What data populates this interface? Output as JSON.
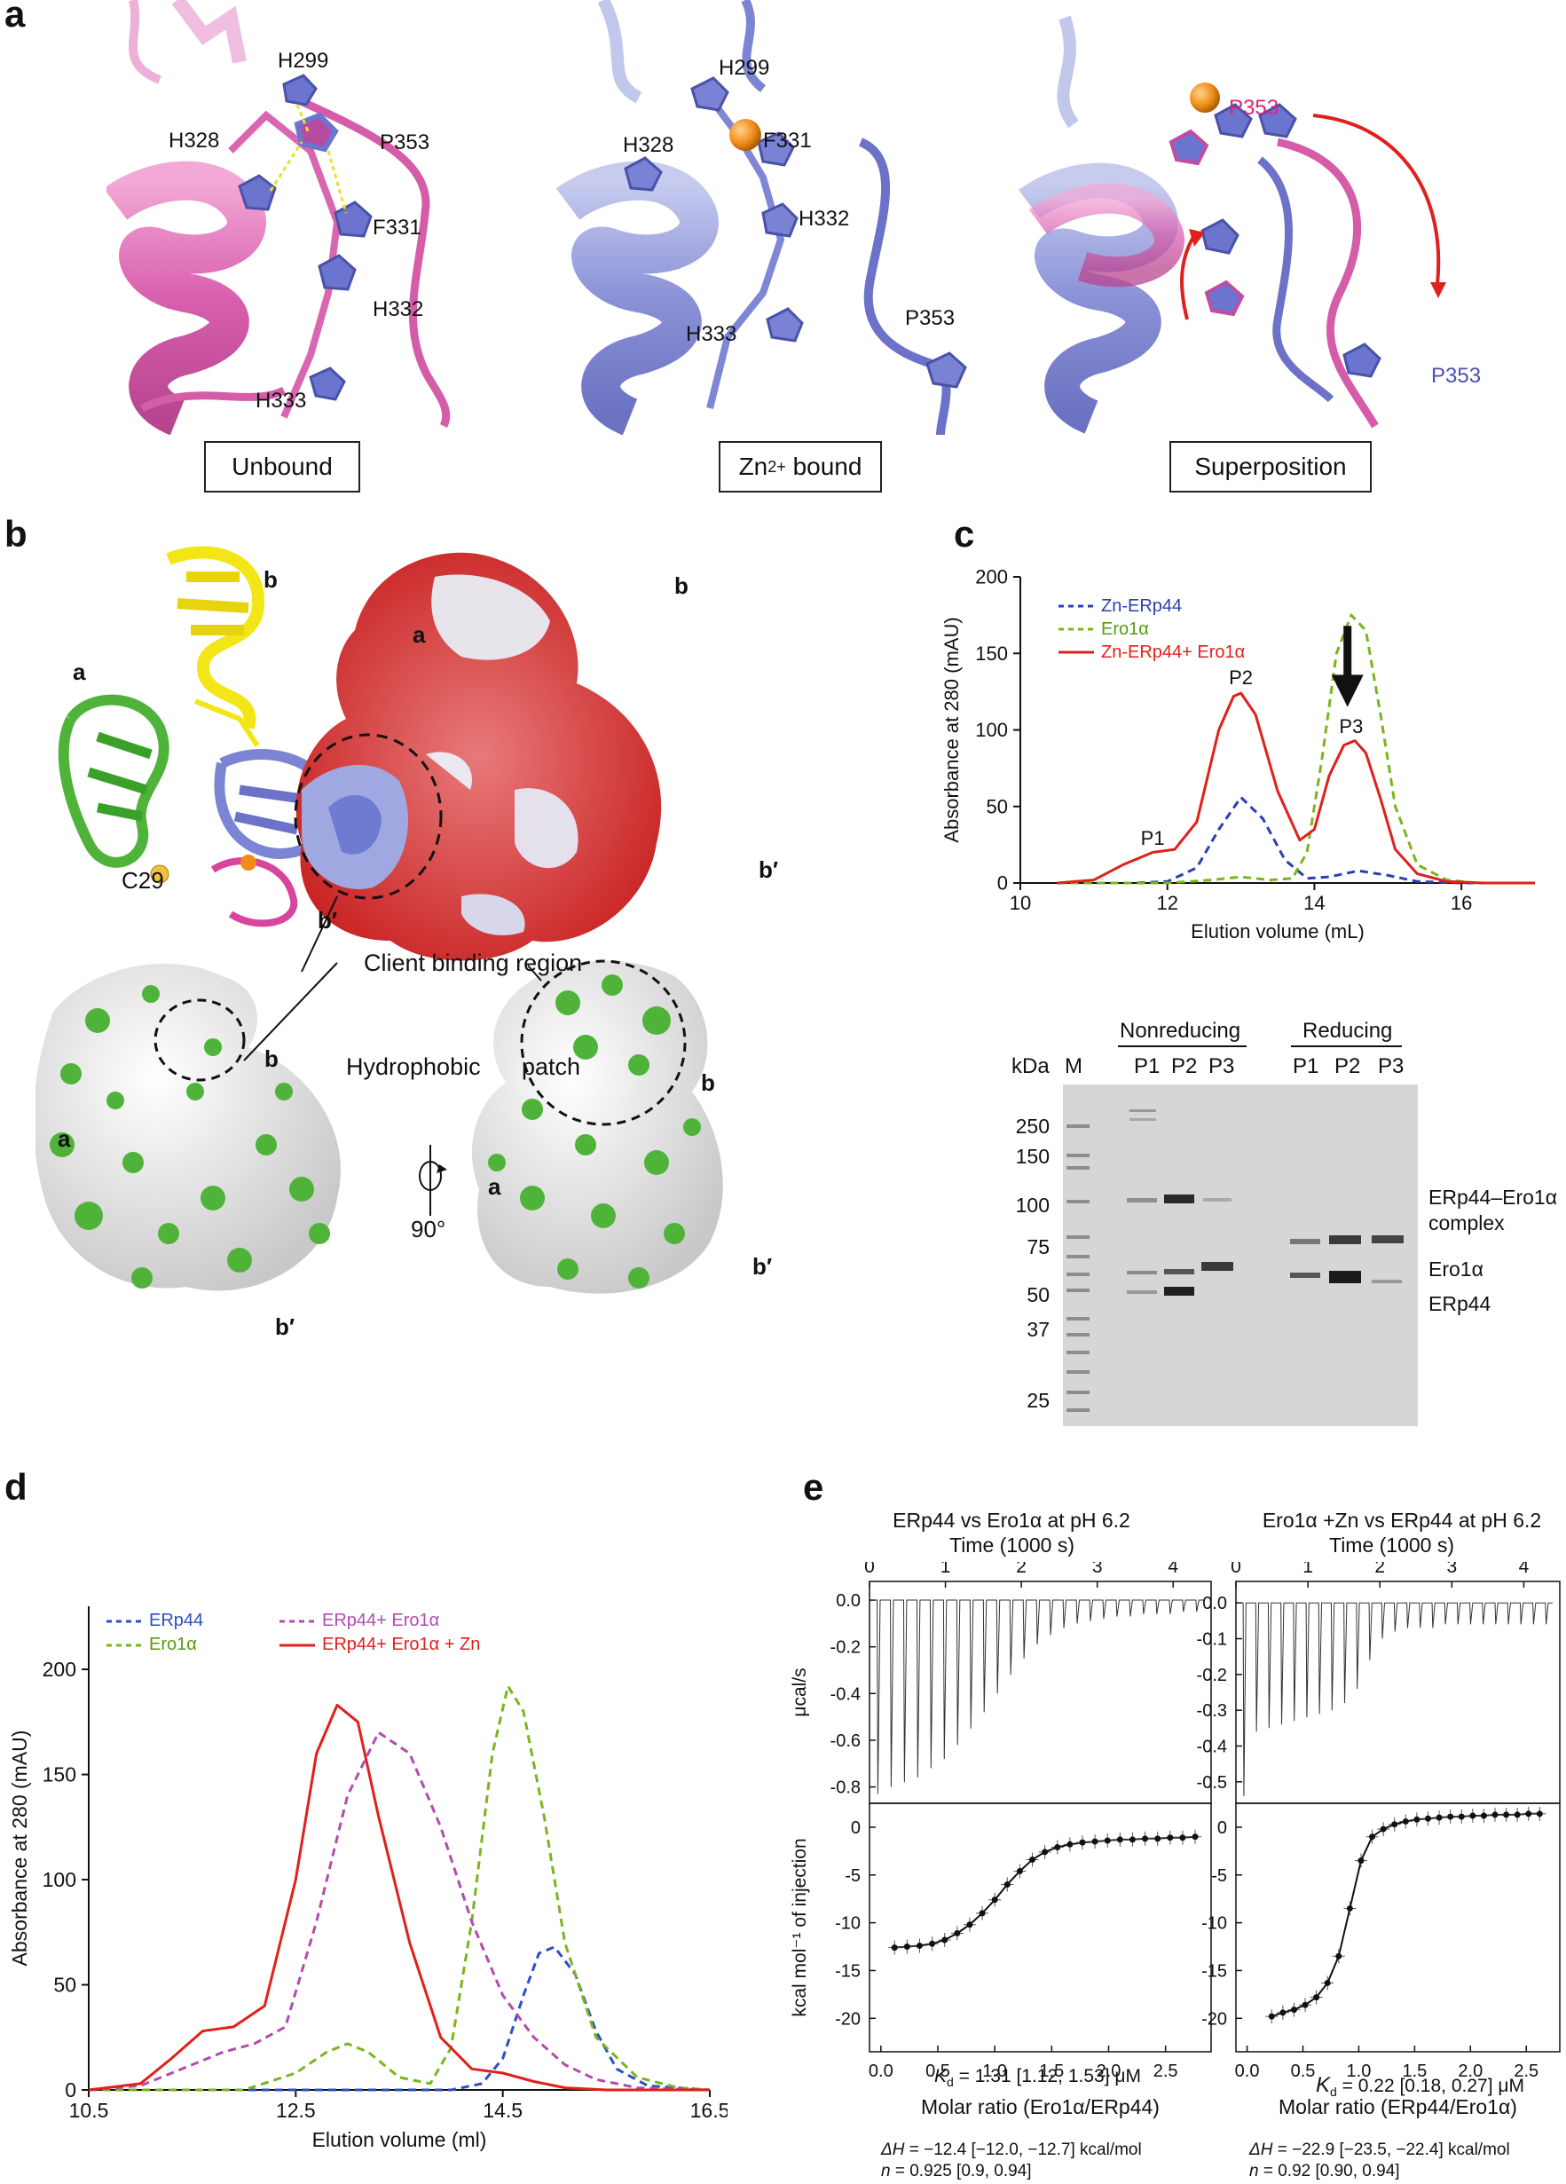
{
  "panel_labels": {
    "a": "a",
    "b": "b",
    "c": "c",
    "d": "d",
    "e": "e"
  },
  "panel_a": {
    "boxes": [
      "Unbound",
      "bound",
      "Superposition"
    ],
    "zn_box_prefix": "Zn",
    "zn_box_sup": "2+",
    "unbound_residues": [
      "H299",
      "P353",
      "H328",
      "F331",
      "H332",
      "H333"
    ],
    "zn_residues": [
      "H299",
      "H328",
      "F331",
      "H332",
      "H333",
      "P353"
    ],
    "super_residues": [
      "P353",
      "P353"
    ]
  },
  "panel_b": {
    "domain_labels": [
      "b",
      "a",
      "b′",
      "C29",
      "a",
      "b",
      "b′",
      "b",
      "a",
      "b′",
      "a",
      "b",
      "b′"
    ],
    "client_region": "Client binding region",
    "hydrophobic": "Hydrophobic",
    "patch": "patch",
    "rotation": "90°"
  },
  "panel_c": {
    "legend": [
      "Zn-ERp44",
      "Ero1α",
      "Zn-ERp44+ Ero1α"
    ],
    "peak_labels": [
      "P1",
      "P2",
      "P3"
    ],
    "gel": {
      "kda": "kDa",
      "m": "M",
      "nonreducing": "Nonreducing",
      "reducing": "Reducing",
      "lanes": [
        "P1",
        "P2",
        "P3",
        "P1",
        "P2",
        "P3"
      ],
      "markers": [
        "250",
        "150",
        "100",
        "75",
        "50",
        "37",
        "25"
      ],
      "band_labels": [
        "ERp44–Ero1α",
        "complex",
        "Ero1α",
        "ERp44"
      ]
    }
  },
  "panel_e": {
    "left_title": "ERp44 vs Ero1α at pH 6.2",
    "right_title": "Ero1α +Zn vs ERp44  at pH 6.2",
    "time_label": "Time (1000 s)",
    "top_ylabel": "μcal/s",
    "bottom_ylabel": "kcal mol⁻¹ of injection",
    "left_xlabel": "Molar ratio (Ero1α/ERp44)",
    "right_xlabel": "Molar ratio (ERp44/Ero1α)",
    "left_kd": "= 1.31 [1.12, 1.53] μM",
    "right_kd": "= 0.22 [0.18, 0.27] μM",
    "kd_sym": "K",
    "kd_sub": "d",
    "left_dh": "= −12.4 [−12.0, −12.7] kcal/mol",
    "right_dh": "= −22.9 [−23.5, −22.4] kcal/mol",
    "left_n": " = 0.925 [0.9, 0.94]",
    "right_n": " = 0.92 [0.90, 0.94]",
    "dh_sym": "ΔH",
    "n_sym": "n"
  },
  "chart_data": [
    {
      "id": "c",
      "type": "line",
      "xlabel": "Elution volume (mL)",
      "ylabel": "Absorbance at 280 (mAU)",
      "xlim": [
        10,
        17
      ],
      "ylim": [
        0,
        200
      ],
      "xticks": [
        10,
        12,
        14,
        16
      ],
      "yticks": [
        0,
        50,
        100,
        150,
        200
      ],
      "legend_position": "top-left",
      "series": [
        {
          "name": "Zn-ERp44",
          "color": "#2b3fb0",
          "dash": true,
          "x": [
            10.5,
            11.5,
            12.0,
            12.4,
            12.7,
            13.0,
            13.3,
            13.6,
            13.9,
            14.2,
            14.6,
            15.0,
            15.4,
            16.0,
            17.0
          ],
          "y": [
            0,
            0,
            1,
            10,
            35,
            56,
            42,
            15,
            3,
            4,
            8,
            5,
            1,
            0,
            0
          ]
        },
        {
          "name": "Ero1α",
          "color": "#7ab51d",
          "dash": true,
          "x": [
            10.5,
            12.0,
            12.6,
            13.0,
            13.4,
            13.7,
            13.9,
            14.1,
            14.3,
            14.5,
            14.7,
            14.9,
            15.1,
            15.4,
            15.8,
            16.2,
            17.0
          ],
          "y": [
            0,
            0,
            2,
            4,
            2,
            3,
            20,
            80,
            150,
            175,
            165,
            110,
            50,
            12,
            2,
            0,
            0
          ]
        },
        {
          "name": "Zn-ERp44+ Ero1α",
          "color": "#e0201b",
          "dash": false,
          "x": [
            10.5,
            11.0,
            11.4,
            11.8,
            12.1,
            12.4,
            12.7,
            12.9,
            13.0,
            13.2,
            13.5,
            13.8,
            14.0,
            14.2,
            14.4,
            14.55,
            14.7,
            14.9,
            15.1,
            15.4,
            15.8,
            16.3,
            17.0
          ],
          "y": [
            0,
            2,
            12,
            20,
            22,
            40,
            100,
            122,
            124,
            110,
            60,
            28,
            35,
            70,
            90,
            93,
            85,
            55,
            22,
            6,
            1,
            0,
            0
          ]
        }
      ],
      "annotations": [
        {
          "text": "P1",
          "x": 11.8,
          "y": 25
        },
        {
          "text": "P2",
          "x": 13.0,
          "y": 130
        },
        {
          "text": "P3",
          "x": 14.5,
          "y": 98
        }
      ]
    },
    {
      "id": "d",
      "type": "line",
      "xlabel": "Elution volume (ml)",
      "ylabel": "Absorbance at 280 (mAU)",
      "xlim": [
        10.5,
        16.5
      ],
      "ylim": [
        0,
        230
      ],
      "xticks": [
        10.5,
        12.5,
        14.5,
        16.5
      ],
      "yticks": [
        0,
        50,
        100,
        150,
        200
      ],
      "legend_position": "top-left",
      "series": [
        {
          "name": "ERp44",
          "color": "#2b4fc0",
          "dash": true,
          "x": [
            10.5,
            14.0,
            14.3,
            14.5,
            14.7,
            14.85,
            15.0,
            15.2,
            15.4,
            15.6,
            15.9,
            16.5
          ],
          "y": [
            0,
            0,
            3,
            15,
            45,
            65,
            68,
            55,
            28,
            10,
            2,
            0
          ]
        },
        {
          "name": "Ero1α",
          "color": "#7ab51d",
          "dash": true,
          "x": [
            10.5,
            12.0,
            12.5,
            12.8,
            13.0,
            13.2,
            13.5,
            13.8,
            14.0,
            14.2,
            14.4,
            14.55,
            14.7,
            14.9,
            15.1,
            15.4,
            15.8,
            16.2,
            16.5
          ],
          "y": [
            0,
            0,
            8,
            18,
            22,
            18,
            6,
            3,
            20,
            80,
            160,
            192,
            180,
            130,
            70,
            25,
            6,
            1,
            0
          ]
        },
        {
          "name": "ERp44+ Ero1α",
          "color": "#b34bb0",
          "dash": true,
          "x": [
            10.5,
            11.0,
            11.4,
            11.8,
            12.1,
            12.4,
            12.7,
            13.0,
            13.3,
            13.6,
            13.9,
            14.2,
            14.5,
            14.8,
            15.1,
            15.4,
            15.8,
            16.5
          ],
          "y": [
            0,
            2,
            10,
            18,
            22,
            30,
            80,
            140,
            170,
            160,
            125,
            80,
            45,
            25,
            12,
            5,
            1,
            0
          ]
        },
        {
          "name": "ERp44+ Ero1α + Zn",
          "color": "#e0201b",
          "dash": false,
          "x": [
            10.5,
            11.0,
            11.3,
            11.6,
            11.9,
            12.2,
            12.5,
            12.7,
            12.9,
            13.1,
            13.3,
            13.6,
            13.9,
            14.2,
            14.5,
            14.8,
            15.1,
            15.5,
            16.0,
            16.5
          ],
          "y": [
            0,
            3,
            15,
            28,
            30,
            40,
            100,
            160,
            183,
            175,
            130,
            70,
            25,
            10,
            8,
            4,
            1,
            0,
            0,
            0
          ]
        }
      ]
    },
    {
      "id": "e-left-top",
      "type": "line",
      "ylabel": "μcal/s",
      "xlim": [
        0,
        4.5
      ],
      "ylim": [
        -0.87,
        0.08
      ],
      "xticks": [
        0,
        1,
        2,
        3,
        4
      ],
      "yticks": [
        0.0,
        -0.2,
        -0.4,
        -0.6,
        -0.8
      ],
      "injections": 25,
      "injection_start_s": 0.1,
      "injection_step_s": 0.175,
      "peak_depths": [
        -0.83,
        -0.8,
        -0.78,
        -0.76,
        -0.72,
        -0.68,
        -0.62,
        -0.55,
        -0.48,
        -0.4,
        -0.32,
        -0.25,
        -0.19,
        -0.15,
        -0.12,
        -0.1,
        -0.09,
        -0.08,
        -0.07,
        -0.07,
        -0.06,
        -0.06,
        -0.06,
        -0.05,
        -0.05
      ]
    },
    {
      "id": "e-left-bottom",
      "type": "scatter",
      "ylabel": "kcal mol⁻¹ of injection",
      "xlabel": "Molar ratio (Ero1α/ERp44)",
      "xlim": [
        -0.1,
        2.9
      ],
      "ylim": [
        -23.5,
        2.5
      ],
      "xticks": [
        0.0,
        0.5,
        1.0,
        1.5,
        2.0,
        2.5
      ],
      "yticks": [
        0,
        -5,
        -10,
        -15,
        -20
      ],
      "points": {
        "x": [
          0.12,
          0.23,
          0.34,
          0.45,
          0.56,
          0.67,
          0.78,
          0.89,
          1.0,
          1.11,
          1.22,
          1.33,
          1.44,
          1.55,
          1.66,
          1.77,
          1.88,
          1.99,
          2.1,
          2.21,
          2.32,
          2.43,
          2.54,
          2.65,
          2.76
        ],
        "y": [
          -12.6,
          -12.5,
          -12.4,
          -12.2,
          -11.8,
          -11.1,
          -10.2,
          -9.0,
          -7.6,
          -6.0,
          -4.6,
          -3.4,
          -2.6,
          -2.1,
          -1.8,
          -1.6,
          -1.5,
          -1.4,
          -1.3,
          -1.3,
          -1.2,
          -1.2,
          -1.1,
          -1.1,
          -1.0
        ]
      }
    },
    {
      "id": "e-right-top",
      "type": "line",
      "ylabel": "",
      "xlim": [
        0,
        4.5
      ],
      "ylim": [
        -0.56,
        0.06
      ],
      "xticks": [
        0,
        1,
        2,
        3,
        4
      ],
      "yticks": [
        0.0,
        -0.1,
        -0.2,
        -0.3,
        -0.4,
        -0.5
      ],
      "injections": 25,
      "injection_start_s": 0.1,
      "injection_step_s": 0.175,
      "peak_depths": [
        -0.54,
        -0.36,
        -0.35,
        -0.34,
        -0.33,
        -0.32,
        -0.31,
        -0.3,
        -0.28,
        -0.24,
        -0.16,
        -0.1,
        -0.08,
        -0.07,
        -0.07,
        -0.07,
        -0.06,
        -0.06,
        -0.06,
        -0.06,
        -0.06,
        -0.06,
        -0.06,
        -0.06,
        -0.06
      ]
    },
    {
      "id": "e-right-bottom",
      "type": "scatter",
      "xlabel": "Molar ratio (ERp44/Ero1α)",
      "xlim": [
        -0.1,
        2.8
      ],
      "ylim": [
        -23.5,
        2.5
      ],
      "xticks": [
        0.0,
        0.5,
        1.0,
        1.5,
        2.0,
        2.5
      ],
      "yticks": [
        0,
        -5,
        -10,
        -15,
        -20
      ],
      "points": {
        "x": [
          0.22,
          0.32,
          0.42,
          0.52,
          0.62,
          0.72,
          0.82,
          0.92,
          1.02,
          1.12,
          1.22,
          1.32,
          1.42,
          1.52,
          1.62,
          1.72,
          1.82,
          1.92,
          2.02,
          2.12,
          2.22,
          2.32,
          2.42,
          2.52,
          2.62
        ],
        "y": [
          -19.8,
          -19.4,
          -19.1,
          -18.6,
          -17.8,
          -16.3,
          -13.5,
          -8.5,
          -3.5,
          -1.0,
          -0.2,
          0.3,
          0.6,
          0.8,
          0.9,
          1.0,
          1.1,
          1.1,
          1.2,
          1.2,
          1.3,
          1.3,
          1.3,
          1.4,
          1.4
        ]
      }
    }
  ]
}
